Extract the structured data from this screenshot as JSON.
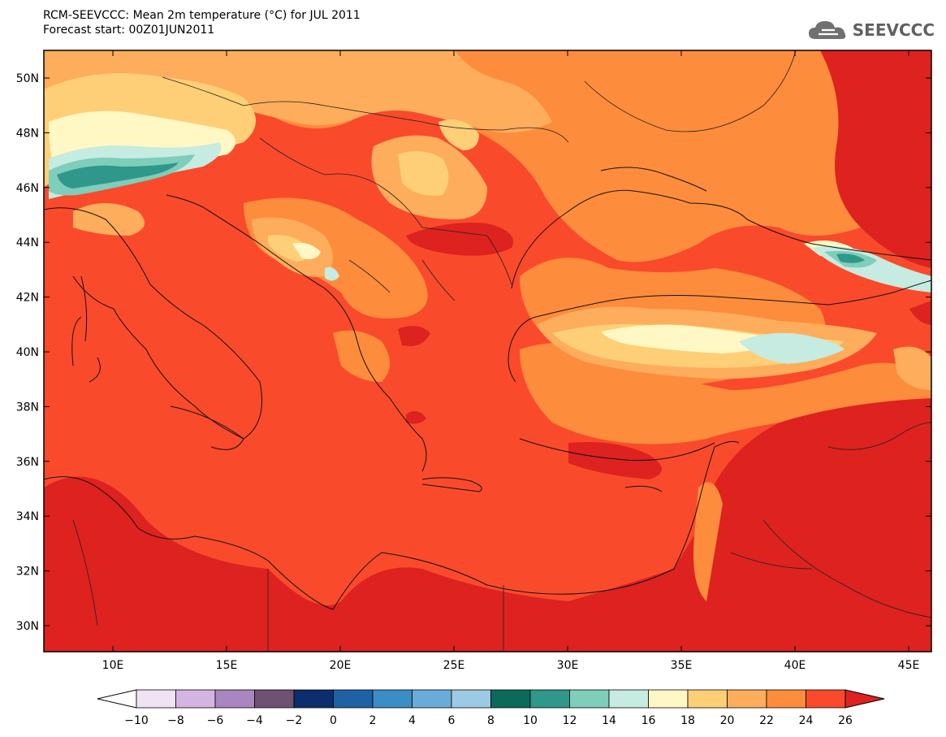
{
  "header": {
    "title_line1": "RCM-SEEVCCC: Mean 2m temperature (°C) for JUL 2011",
    "title_line2": "Forecast start: 00Z01JUN2011"
  },
  "logo": {
    "text": "SEEVCCC",
    "icon": "cloud-icon"
  },
  "map": {
    "lon_ticks": [
      "10E",
      "15E",
      "20E",
      "25E",
      "30E",
      "35E",
      "40E",
      "45E"
    ],
    "lat_ticks": [
      "50N",
      "48N",
      "46N",
      "44N",
      "42N",
      "40N",
      "38N",
      "36N",
      "34N",
      "32N",
      "30N"
    ],
    "colors": {
      "lt26": "#fa4a2c",
      "gt26": "#dd2220",
      "c24": "#fd8c3c",
      "c22": "#fdad5b",
      "c20": "#fecf77",
      "c18": "#fff8c4",
      "c14": "#c6ebe0",
      "c12": "#7fcdbb",
      "c10": "#2f988a"
    }
  },
  "colorbar": {
    "labels": [
      "−10",
      "−8",
      "−6",
      "−4",
      "−2",
      "0",
      "2",
      "4",
      "6",
      "8",
      "10",
      "12",
      "14",
      "16",
      "18",
      "20",
      "22",
      "24",
      "26"
    ],
    "colors": [
      "#ffffff",
      "#f0e4f4",
      "#d4b5e2",
      "#a986c0",
      "#6e5272",
      "#0c2d6e",
      "#1f61a5",
      "#3b8dc5",
      "#6aacd8",
      "#9ccae4",
      "#0b6a5a",
      "#2f988a",
      "#7fcdbb",
      "#c6ebe0",
      "#fff8c4",
      "#fecf77",
      "#fdad5b",
      "#fd8c3c",
      "#fa4a2c",
      "#dd2220"
    ]
  }
}
